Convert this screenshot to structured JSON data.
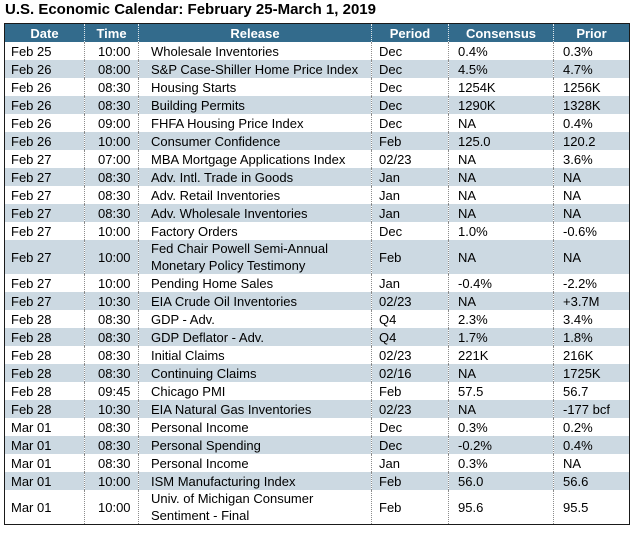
{
  "title": "U.S. Economic Calendar: February 25-March 1, 2019",
  "colors": {
    "header_bg": "#336B8C",
    "header_text": "#FFFFFF",
    "row_bg": "#FFFFFF",
    "row_alt_bg": "#CCD9E2",
    "border": "#1A1A1A",
    "column_separator": "#8C8C8C"
  },
  "table": {
    "columns": [
      {
        "key": "date",
        "label": "Date"
      },
      {
        "key": "time",
        "label": "Time"
      },
      {
        "key": "release",
        "label": "Release"
      },
      {
        "key": "period",
        "label": "Period"
      },
      {
        "key": "consensus",
        "label": "Consensus"
      },
      {
        "key": "prior",
        "label": "Prior"
      }
    ],
    "rows": [
      [
        "Feb 25",
        "10:00",
        "Wholesale Inventories",
        "Dec",
        "0.4%",
        "0.3%"
      ],
      [
        "Feb 26",
        "08:00",
        "S&P Case-Shiller Home Price Index",
        "Dec",
        "4.5%",
        "4.7%"
      ],
      [
        "Feb 26",
        "08:30",
        "Housing Starts",
        "Dec",
        "1254K",
        "1256K"
      ],
      [
        "Feb 26",
        "08:30",
        "Building Permits",
        "Dec",
        "1290K",
        "1328K"
      ],
      [
        "Feb 26",
        "09:00",
        "FHFA Housing Price Index",
        "Dec",
        "NA",
        "0.4%"
      ],
      [
        "Feb 26",
        "10:00",
        "Consumer Confidence",
        "Feb",
        "125.0",
        "120.2"
      ],
      [
        "Feb 27",
        "07:00",
        "MBA Mortgage Applications Index",
        "02/23",
        "NA",
        "3.6%"
      ],
      [
        "Feb 27",
        "08:30",
        "Adv. Intl. Trade in Goods",
        "Jan",
        "NA",
        "NA"
      ],
      [
        "Feb 27",
        "08:30",
        "Adv. Retail Inventories",
        "Jan",
        "NA",
        "NA"
      ],
      [
        "Feb 27",
        "08:30",
        "Adv. Wholesale Inventories",
        "Jan",
        "NA",
        "NA"
      ],
      [
        "Feb 27",
        "10:00",
        "Factory Orders",
        "Dec",
        "1.0%",
        "-0.6%"
      ],
      [
        "Feb 27",
        "10:00",
        "Fed Chair Powell Semi-Annual Monetary Policy Testimony",
        "Feb",
        "NA",
        "NA"
      ],
      [
        "Feb 27",
        "10:00",
        "Pending Home Sales",
        "Jan",
        "-0.4%",
        "-2.2%"
      ],
      [
        "Feb 27",
        "10:30",
        "EIA Crude Oil Inventories",
        "02/23",
        "NA",
        "+3.7M"
      ],
      [
        "Feb 28",
        "08:30",
        "GDP - Adv.",
        "Q4",
        "2.3%",
        "3.4%"
      ],
      [
        "Feb 28",
        "08:30",
        "GDP Deflator - Adv.",
        "Q4",
        "1.7%",
        "1.8%"
      ],
      [
        "Feb 28",
        "08:30",
        "Initial Claims",
        "02/23",
        "221K",
        "216K"
      ],
      [
        "Feb 28",
        "08:30",
        "Continuing Claims",
        "02/16",
        "NA",
        "1725K"
      ],
      [
        "Feb 28",
        "09:45",
        "Chicago PMI",
        "Feb",
        "57.5",
        "56.7"
      ],
      [
        "Feb 28",
        "10:30",
        "EIA Natural Gas Inventories",
        "02/23",
        "NA",
        "-177 bcf"
      ],
      [
        "Mar 01",
        "08:30",
        "Personal Income",
        "Dec",
        "0.3%",
        "0.2%"
      ],
      [
        "Mar 01",
        "08:30",
        "Personal Spending",
        "Dec",
        "-0.2%",
        "0.4%"
      ],
      [
        "Mar 01",
        "08:30",
        "Personal Income",
        "Jan",
        "0.3%",
        "NA"
      ],
      [
        "Mar 01",
        "10:00",
        "ISM Manufacturing Index",
        "Feb",
        "56.0",
        "56.6"
      ],
      [
        "Mar 01",
        "10:00",
        "Univ. of Michigan Consumer Sentiment - Final",
        "Feb",
        "95.6",
        "95.5"
      ]
    ]
  }
}
